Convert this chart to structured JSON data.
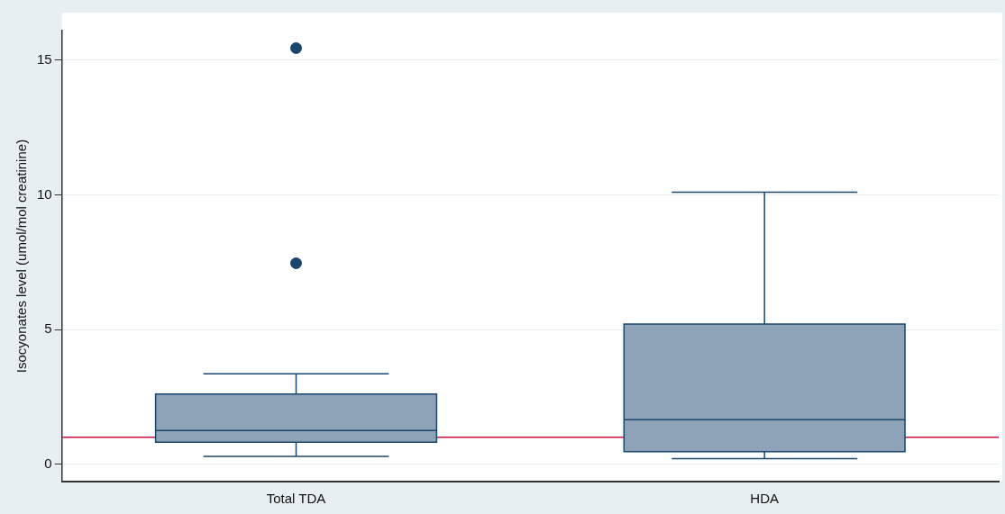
{
  "chart_data": {
    "type": "box",
    "ylabel": "Isocyonates level (umol/mol creatinine)",
    "categories": [
      "Total TDA",
      "HDA"
    ],
    "boxes": [
      {
        "low": 0.29,
        "q1": 0.81,
        "median": 1.25,
        "q3": 2.6,
        "high": 3.35,
        "outliers": [
          7.46,
          15.45
        ]
      },
      {
        "low": 0.2,
        "q1": 0.46,
        "median": 1.65,
        "q3": 5.2,
        "high": 10.1
      }
    ],
    "color": "#8ea3b8",
    "ylim": [
      -0.65,
      16.1
    ],
    "yticks": [
      0,
      5,
      10,
      15
    ],
    "grid": "y",
    "legend": false,
    "ref_lines": [
      {
        "axis": "y",
        "value": 1,
        "color": "#d0103a"
      }
    ]
  }
}
